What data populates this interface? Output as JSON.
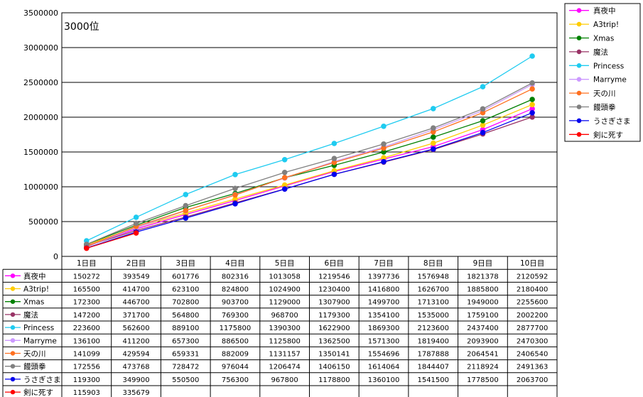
{
  "chart_data": {
    "type": "line",
    "title": "3000位",
    "ylim": [
      0,
      3500000
    ],
    "y_ticks": [
      "0",
      "500000",
      "1000000",
      "1500000",
      "2000000",
      "2500000",
      "3000000",
      "3500000"
    ],
    "categories": [
      "1日目",
      "2日目",
      "3日目",
      "4日目",
      "5日目",
      "6日目",
      "7日目",
      "8日目",
      "9日目",
      "10日目"
    ],
    "grid": true,
    "legend_position": "right",
    "has_data_table": true,
    "series": [
      {
        "name": "真夜中",
        "color": "#ff00ff",
        "values": [
          150272,
          393549,
          601776,
          802316,
          1013058,
          1219546,
          1397736,
          1576948,
          1821378,
          2120592
        ]
      },
      {
        "name": "A3trip!",
        "color": "#ffcc00",
        "values": [
          165500,
          414700,
          623100,
          824800,
          1024900,
          1230400,
          1416800,
          1626700,
          1885800,
          2180400
        ]
      },
      {
        "name": "Xmas",
        "color": "#008000",
        "values": [
          172300,
          446700,
          702800,
          903700,
          1129000,
          1307900,
          1499700,
          1713100,
          1949000,
          2255600
        ]
      },
      {
        "name": "魔法",
        "color": "#993366",
        "values": [
          147200,
          371700,
          564800,
          769300,
          968700,
          1179300,
          1354100,
          1535000,
          1759100,
          2002200
        ]
      },
      {
        "name": "Princess",
        "color": "#1ecbf0",
        "values": [
          223600,
          562600,
          889100,
          1175800,
          1390300,
          1622900,
          1869300,
          2123600,
          2437400,
          2877700
        ]
      },
      {
        "name": "Marryme",
        "color": "#cc99ff",
        "values": [
          136100,
          411200,
          657300,
          886500,
          1125800,
          1362500,
          1571300,
          1819400,
          2093900,
          2470300
        ]
      },
      {
        "name": "天の川",
        "color": "#ff7020",
        "values": [
          141099,
          429594,
          659331,
          882009,
          1131157,
          1350141,
          1554696,
          1787888,
          2064541,
          2406540
        ]
      },
      {
        "name": "饅頭拳",
        "color": "#808080",
        "values": [
          172556,
          473768,
          728472,
          976044,
          1206474,
          1406150,
          1614064,
          1844407,
          2118924,
          2491363
        ]
      },
      {
        "name": "うさぎさま",
        "color": "#0000ee",
        "values": [
          119300,
          349900,
          550500,
          756300,
          967800,
          1178800,
          1360100,
          1541500,
          1778500,
          2063700
        ]
      },
      {
        "name": "剣に死す",
        "color": "#ff0000",
        "values": [
          115903,
          335679,
          null,
          null,
          null,
          null,
          null,
          null,
          null,
          null
        ]
      }
    ]
  }
}
